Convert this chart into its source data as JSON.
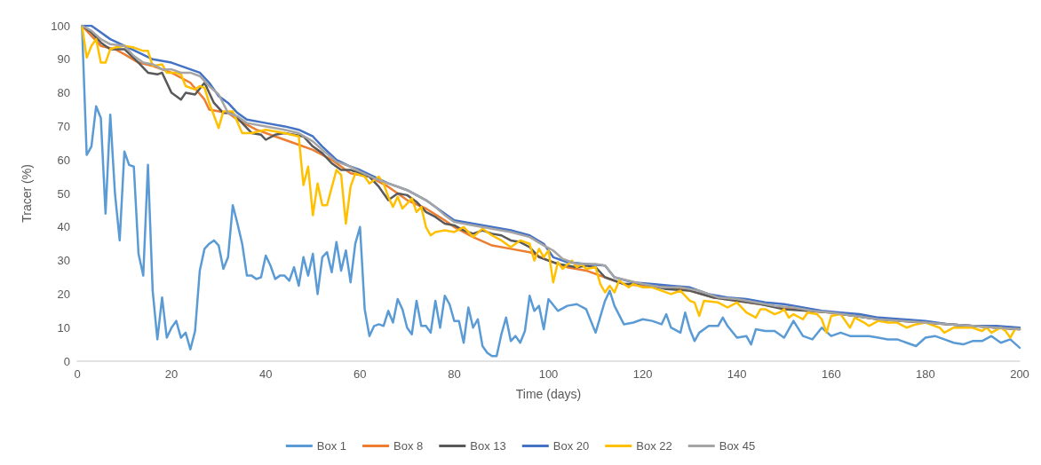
{
  "chart_data": {
    "type": "line",
    "xlabel": "Time (days)",
    "ylabel": "Tracer (%)",
    "xlim": [
      0,
      200
    ],
    "xticks": [
      0,
      20,
      40,
      60,
      80,
      100,
      120,
      140,
      160,
      180,
      200
    ],
    "ylim": [
      0,
      100
    ],
    "yticks": [
      0,
      10,
      20,
      30,
      40,
      50,
      60,
      70,
      80,
      90,
      100
    ],
    "grid": false,
    "legend": "bottom",
    "marker": "none",
    "line_style": "solid",
    "series": [
      {
        "name": "Box 1",
        "color": "#5b9bd5",
        "x": [
          1,
          2,
          3,
          4,
          5,
          6,
          7,
          8,
          9,
          10,
          11,
          12,
          13,
          14,
          15,
          16,
          17,
          18,
          19,
          20,
          21,
          22,
          23,
          24,
          25,
          26,
          27,
          28,
          29,
          30,
          31,
          32,
          33,
          34,
          35,
          36,
          37,
          38,
          39,
          40,
          41,
          42,
          43,
          44,
          45,
          46,
          47,
          48,
          49,
          50,
          51,
          52,
          53,
          54,
          55,
          56,
          57,
          58,
          59,
          60,
          61,
          62,
          63,
          64,
          65,
          66,
          67,
          68,
          69,
          70,
          71,
          72,
          73,
          74,
          75,
          76,
          77,
          78,
          79,
          80,
          81,
          82,
          83,
          84,
          85,
          86,
          87,
          88,
          89,
          90,
          91,
          92,
          93,
          94,
          95,
          96,
          97,
          98,
          99,
          100,
          102,
          104,
          106,
          108,
          110,
          112,
          113,
          114,
          116,
          118,
          120,
          122,
          124,
          125,
          126,
          128,
          129,
          130,
          131,
          132,
          134,
          136,
          137,
          138,
          140,
          142,
          143,
          144,
          146,
          148,
          150,
          152,
          154,
          156,
          158,
          160,
          162,
          164,
          166,
          168,
          170,
          172,
          174,
          176,
          178,
          180,
          182,
          184,
          186,
          188,
          190,
          192,
          194,
          196,
          198,
          200
        ],
        "values": [
          100,
          61.5,
          64,
          76,
          72.5,
          44,
          73.5,
          50,
          36,
          62.5,
          58.5,
          58,
          32,
          25.5,
          58.5,
          21,
          6.5,
          19,
          7,
          10,
          12,
          7,
          8.5,
          3.5,
          9,
          27,
          33.5,
          35,
          36,
          34.5,
          27.5,
          31,
          46.5,
          41,
          35,
          25.5,
          25.5,
          24.5,
          25,
          31.5,
          28.5,
          24.5,
          25.5,
          25.5,
          24,
          28,
          22.5,
          31,
          25.5,
          32,
          20,
          31,
          32.5,
          26.5,
          35.5,
          27,
          33,
          23.5,
          35,
          40,
          15.5,
          7.5,
          10.5,
          11,
          10.5,
          15,
          11.5,
          18.5,
          15.5,
          10,
          8,
          18,
          10.5,
          10.5,
          8.5,
          18,
          10,
          19.5,
          17,
          12,
          12,
          5.5,
          16,
          10,
          12.5,
          4.5,
          2.5,
          1.5,
          1.5,
          8,
          13,
          6,
          7.5,
          5.5,
          9,
          19.5,
          15,
          16.5,
          9.5,
          18.5,
          15,
          16.5,
          17,
          15.5,
          8.5,
          18,
          21,
          16.5,
          11,
          11.5,
          12.5,
          12,
          11,
          14,
          10,
          8.5,
          14.5,
          9.5,
          6,
          8.5,
          10.5,
          10.5,
          13,
          10.5,
          7,
          7.5,
          5,
          9.5,
          9,
          9,
          7,
          12,
          7.5,
          6.5,
          10,
          7.5,
          8.5,
          7.5,
          7.5,
          7.5,
          7,
          6.5,
          6.5,
          5.5,
          4.5,
          7,
          7.5,
          6.5,
          5.5,
          5,
          6,
          6,
          7.5,
          5.5,
          6.5,
          4
        ]
      },
      {
        "name": "Box 8",
        "color": "#ed7d31",
        "x": [
          1,
          3,
          5,
          8,
          10,
          13,
          16,
          20,
          24,
          27,
          28,
          32,
          34,
          38,
          42,
          46,
          50,
          54,
          58,
          62,
          66,
          70,
          74,
          78,
          80,
          84,
          88,
          92,
          96,
          100,
          104,
          108,
          112,
          116,
          120,
          125,
          130,
          135,
          140,
          145,
          150,
          155,
          160,
          165,
          170,
          175,
          180,
          185,
          190,
          195,
          200
        ],
        "values": [
          100,
          97,
          94,
          93,
          91.5,
          89,
          88,
          86,
          83,
          78,
          75,
          74,
          72,
          69,
          67,
          65,
          63,
          60,
          56,
          55,
          52,
          48,
          45.5,
          42,
          40,
          37,
          34.5,
          33.5,
          32.5,
          30,
          28,
          27,
          25,
          23,
          22.5,
          22,
          21,
          19,
          18,
          17,
          16,
          15,
          14.5,
          13.5,
          12.5,
          12,
          11.5,
          11,
          10.5,
          10,
          9.5
        ]
      },
      {
        "name": "Box 13",
        "color": "#595959",
        "x": [
          1,
          3,
          5,
          7,
          10,
          13,
          15,
          17,
          18,
          20,
          22,
          23,
          25,
          27,
          29,
          31,
          33,
          35,
          37,
          39,
          40,
          42,
          44,
          46,
          48,
          50,
          52,
          54,
          56,
          58,
          60,
          62,
          64,
          66,
          68,
          70,
          72,
          74,
          76,
          78,
          80,
          82,
          84,
          86,
          88,
          90,
          92,
          94,
          96,
          98,
          100,
          102,
          104,
          106,
          108,
          110,
          112,
          114,
          116,
          120,
          125,
          130,
          135,
          140,
          145,
          150,
          155,
          160,
          165,
          170,
          175,
          180,
          185,
          190,
          195,
          200
        ],
        "values": [
          100,
          98,
          95,
          93,
          93,
          89,
          86,
          85.5,
          86,
          80,
          78,
          80,
          79.5,
          83,
          77,
          74,
          74,
          71,
          68,
          67.5,
          66,
          67.5,
          68,
          67.5,
          67,
          64,
          62,
          59,
          57,
          57,
          56,
          55,
          52,
          48,
          50,
          49.5,
          47.5,
          44.5,
          43,
          41,
          40.5,
          39,
          38,
          39,
          38,
          37.5,
          36,
          35.5,
          34,
          31,
          30,
          29,
          28.5,
          28,
          28.5,
          28,
          25,
          24,
          23,
          23,
          21.5,
          21,
          19,
          18,
          17,
          15.5,
          15,
          14.5,
          13.5,
          12.5,
          12,
          11.5,
          11,
          10.5,
          10,
          9.5
        ]
      },
      {
        "name": "Box 20",
        "color": "#4472c4",
        "x": [
          1,
          3,
          5,
          7,
          10,
          13,
          16,
          20,
          24,
          26,
          28,
          30,
          32,
          34,
          36,
          40,
          44,
          47,
          50,
          52,
          55,
          58,
          60,
          63,
          66,
          70,
          74,
          77,
          80,
          84,
          88,
          92,
          96,
          99,
          101,
          104,
          108,
          112,
          114,
          118,
          122,
          126,
          130,
          134,
          138,
          142,
          146,
          150,
          154,
          158,
          162,
          166,
          170,
          175,
          180,
          185,
          190,
          195,
          200
        ],
        "values": [
          100,
          100,
          98,
          96,
          94,
          92,
          90,
          89,
          87,
          86,
          83,
          79,
          77,
          74,
          72,
          71,
          70,
          69,
          67,
          64,
          60,
          58,
          57,
          55,
          53,
          51,
          48,
          45,
          42,
          41,
          40,
          39,
          37.5,
          35,
          31,
          29.5,
          29,
          28.5,
          25,
          23.5,
          23,
          22.5,
          22,
          20,
          19,
          18.5,
          17.5,
          17,
          16,
          15,
          14.5,
          14,
          13,
          12.5,
          12,
          11,
          10.5,
          10.5,
          10
        ]
      },
      {
        "name": "Box 22",
        "color": "#ffc000",
        "x": [
          1,
          2,
          3,
          4,
          5,
          6,
          7,
          8,
          10,
          12,
          14,
          15,
          16,
          18,
          19,
          21,
          22,
          23,
          25,
          26,
          27,
          28,
          30,
          31,
          33,
          35,
          37,
          40,
          44,
          47,
          48,
          49,
          50,
          51,
          52,
          53,
          55,
          56,
          57,
          58,
          59,
          61,
          62,
          64,
          65,
          66,
          67,
          68,
          69,
          70,
          71,
          72,
          73,
          74,
          75,
          76,
          78,
          80,
          82,
          84,
          86,
          88,
          90,
          92,
          94,
          96,
          97,
          98,
          99,
          100,
          101,
          102,
          103,
          105,
          106,
          107,
          108,
          110,
          111,
          112,
          113,
          114,
          115,
          117,
          118,
          120,
          122,
          124,
          126,
          128,
          130,
          131,
          132,
          133,
          136,
          138,
          140,
          142,
          144,
          145,
          146,
          148,
          149,
          150,
          151,
          152,
          154,
          155,
          157,
          158,
          159,
          160,
          162,
          164,
          165,
          167,
          168,
          170,
          172,
          174,
          176,
          178,
          180,
          182,
          183,
          184,
          186,
          188,
          190,
          192,
          193,
          194,
          196,
          197,
          198,
          199,
          200
        ],
        "values": [
          100,
          90.5,
          94,
          96,
          89,
          89,
          93,
          93.5,
          94,
          93.5,
          92.5,
          92.5,
          88,
          88.5,
          86,
          86,
          85.5,
          82,
          81,
          82,
          81.5,
          77,
          69.5,
          74.5,
          74.5,
          68,
          68,
          69,
          68,
          67,
          52.5,
          58,
          43.5,
          53,
          46.5,
          46.5,
          57,
          55.5,
          41,
          52,
          56,
          55,
          53,
          55,
          53,
          49,
          46,
          49,
          45.5,
          47,
          48.5,
          44.5,
          46,
          40,
          37.5,
          38.5,
          39,
          38.5,
          40,
          37,
          39.5,
          37.5,
          36,
          34,
          36,
          35,
          30,
          33.5,
          31,
          33,
          23.5,
          29.5,
          27.5,
          30,
          28,
          29,
          27.5,
          28,
          23,
          20.5,
          22.5,
          20.5,
          24,
          22,
          23,
          22,
          22,
          21,
          20,
          21,
          18,
          17.5,
          13.5,
          18,
          17.5,
          16,
          17.5,
          14.5,
          13,
          15.5,
          15.5,
          14,
          14.5,
          15.5,
          13,
          14,
          12.5,
          14.5,
          14,
          12.5,
          8.5,
          13.5,
          14,
          10,
          13,
          11.5,
          10.5,
          12,
          11.5,
          11.5,
          10,
          11,
          11.5,
          10.5,
          10,
          8.5,
          10,
          10,
          10,
          9,
          10,
          8.5,
          10,
          9,
          7,
          9.5,
          9.5
        ]
      },
      {
        "name": "Box 45",
        "color": "#a5a5a5",
        "x": [
          1,
          3,
          5,
          7,
          10,
          12,
          14,
          16,
          18,
          20,
          22,
          24,
          26,
          28,
          30,
          32,
          34,
          36,
          40,
          44,
          47,
          50,
          52,
          55,
          58,
          60,
          63,
          66,
          70,
          74,
          76,
          78,
          80,
          84,
          88,
          92,
          96,
          99,
          101,
          103,
          106,
          110,
          112,
          114,
          117,
          120,
          124,
          128,
          132,
          136,
          140,
          144,
          148,
          152,
          156,
          160,
          165,
          170,
          175,
          180,
          185,
          190,
          195,
          200
        ],
        "values": [
          100,
          98.5,
          96,
          94.5,
          94,
          91,
          89,
          88.5,
          87,
          87,
          86,
          86,
          85,
          82,
          79.5,
          74,
          73,
          71,
          70,
          69,
          68,
          65.5,
          63,
          59.5,
          58,
          56.5,
          54.5,
          53,
          51,
          48,
          46,
          43.5,
          41.5,
          40.5,
          39.5,
          38.5,
          37,
          34.5,
          33,
          30.5,
          29,
          29,
          28.5,
          25,
          24,
          23,
          22,
          22,
          21,
          19,
          18.5,
          17.5,
          16.5,
          16,
          15,
          14.5,
          13.5,
          12.5,
          12,
          11.5,
          11,
          10.5,
          10,
          9.5
        ]
      }
    ]
  }
}
